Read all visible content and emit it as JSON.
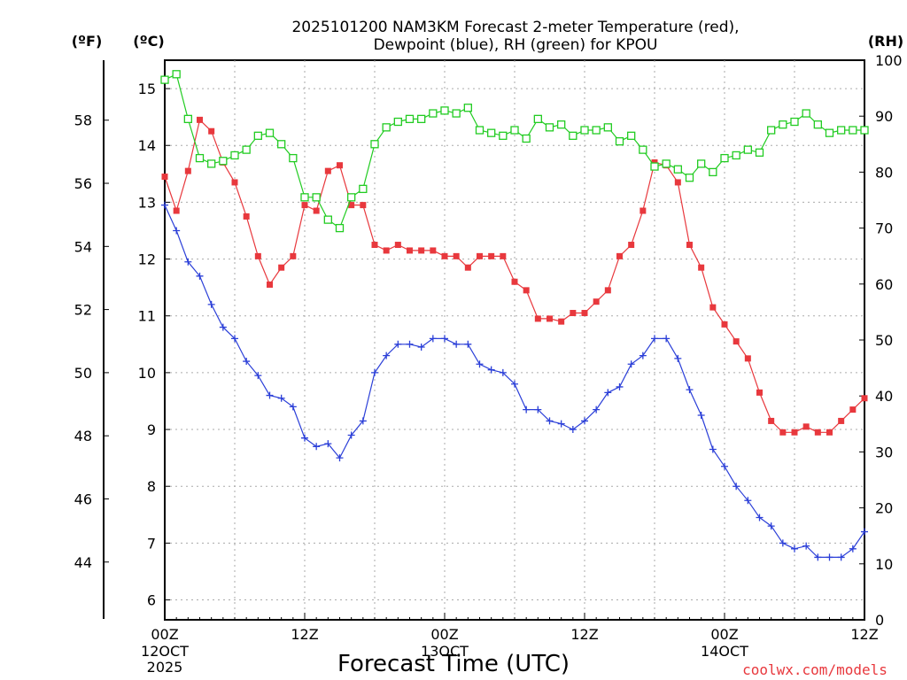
{
  "chart_data": {
    "type": "line",
    "title_line1": "2025101200 NAM3KM Forecast 2-meter Temperature (red),",
    "title_line2": "Dewpoint (blue), RH (green) for KPOU",
    "xlabel": "Forecast Time (UTC)",
    "credit": "coolwx.com/models",
    "unit_left_outer": "(ºF)",
    "unit_left_inner": "(ºC)",
    "unit_right": "(RH)",
    "xlim": [
      0,
      60
    ],
    "ylim_celsius": [
      5.65,
      15.5
    ],
    "ylim_rh": [
      0,
      100
    ],
    "celsius_ticks": [
      "6",
      "7",
      "8",
      "9",
      "10",
      "11",
      "12",
      "13",
      "14",
      "15"
    ],
    "fahrenheit_ticks": [
      "44",
      "46",
      "48",
      "50",
      "52",
      "54",
      "56",
      "58"
    ],
    "rh_ticks": [
      "0",
      "10",
      "20",
      "30",
      "40",
      "50",
      "60",
      "70",
      "80",
      "90",
      "100"
    ],
    "x_ticks": [
      {
        "hour": 0,
        "label": "00Z",
        "sub1": "12OCT",
        "sub2": "2025"
      },
      {
        "hour": 12,
        "label": "12Z",
        "sub1": "",
        "sub2": ""
      },
      {
        "hour": 24,
        "label": "00Z",
        "sub1": "13OCT",
        "sub2": ""
      },
      {
        "hour": 36,
        "label": "12Z",
        "sub1": "",
        "sub2": ""
      },
      {
        "hour": 48,
        "label": "00Z",
        "sub1": "14OCT",
        "sub2": ""
      },
      {
        "hour": 60,
        "label": "12Z",
        "sub1": "",
        "sub2": ""
      }
    ],
    "hours": [
      0,
      1,
      2,
      3,
      4,
      5,
      6,
      7,
      8,
      9,
      10,
      11,
      12,
      13,
      14,
      15,
      16,
      17,
      18,
      19,
      20,
      21,
      22,
      23,
      24,
      25,
      26,
      27,
      28,
      29,
      30,
      31,
      32,
      33,
      34,
      35,
      36,
      37,
      38,
      39,
      40,
      41,
      42,
      43,
      44,
      45,
      46,
      47,
      48,
      49,
      50,
      51,
      52,
      53,
      54,
      55,
      56,
      57,
      58,
      59,
      60
    ],
    "series": [
      {
        "name": "2-meter Temperature",
        "axis": "celsius",
        "color": "#e8383d",
        "marker": "filled-square",
        "values": [
          13.45,
          12.85,
          13.55,
          14.45,
          14.25,
          13.7,
          13.35,
          12.75,
          12.05,
          11.55,
          11.85,
          12.05,
          12.95,
          12.85,
          13.55,
          13.65,
          12.95,
          12.95,
          12.25,
          12.15,
          12.25,
          12.15,
          12.15,
          12.15,
          12.05,
          12.05,
          11.85,
          12.05,
          12.05,
          12.05,
          11.6,
          11.45,
          10.95,
          10.95,
          10.9,
          11.05,
          11.05,
          11.25,
          11.45,
          12.05,
          12.25,
          12.85,
          13.7,
          13.65,
          13.35,
          12.25,
          11.85,
          11.15,
          10.85,
          10.55,
          10.25,
          9.65,
          9.15,
          8.95,
          8.95,
          9.05,
          8.95,
          8.95,
          9.15,
          9.35,
          9.55
        ]
      },
      {
        "name": "Dewpoint",
        "axis": "celsius",
        "color": "#2b3fd8",
        "marker": "plus",
        "values": [
          12.95,
          12.5,
          11.95,
          11.7,
          11.2,
          10.8,
          10.6,
          10.2,
          9.95,
          9.6,
          9.55,
          9.4,
          8.85,
          8.7,
          8.75,
          8.5,
          8.9,
          9.15,
          10.0,
          10.3,
          10.5,
          10.5,
          10.45,
          10.6,
          10.6,
          10.5,
          10.5,
          10.15,
          10.05,
          10.0,
          9.8,
          9.35,
          9.35,
          9.15,
          9.1,
          9.0,
          9.15,
          9.35,
          9.65,
          9.75,
          10.15,
          10.3,
          10.6,
          10.6,
          10.25,
          9.7,
          9.25,
          8.65,
          8.35,
          8.0,
          7.75,
          7.45,
          7.3,
          7.0,
          6.9,
          6.95,
          6.75,
          6.75,
          6.75,
          6.9,
          7.2
        ]
      },
      {
        "name": "RH",
        "axis": "rh",
        "color": "#22cc22",
        "marker": "open-square",
        "values": [
          96.5,
          97.5,
          89.5,
          82.5,
          81.5,
          82,
          83,
          84,
          86.5,
          87,
          85,
          82.5,
          75.5,
          75.5,
          71.5,
          70,
          75.5,
          77,
          85,
          88,
          89,
          89.5,
          89.5,
          90.5,
          91,
          90.5,
          91.5,
          87.5,
          87,
          86.5,
          87.5,
          86,
          89.5,
          88,
          88.5,
          86.5,
          87.5,
          87.5,
          88,
          85.5,
          86.5,
          84,
          81,
          81.5,
          80.5,
          79,
          81.5,
          80,
          82.5,
          83,
          84,
          83.5,
          87.5,
          88.5,
          89,
          90.5,
          88.5,
          87,
          87.5,
          87.5,
          87.5
        ]
      }
    ]
  }
}
